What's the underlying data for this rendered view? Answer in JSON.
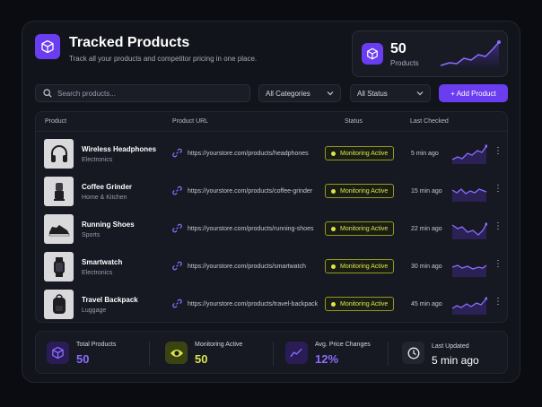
{
  "header": {
    "title": "Tracked Products",
    "subtitle": "Track all your products and competitor pricing in one place."
  },
  "stat_card": {
    "value": "50",
    "label": "Products"
  },
  "toolbar": {
    "search_placeholder": "Search products...",
    "category_filter": "All Categories",
    "status_filter": "All Status",
    "add_button": "+ Add Product"
  },
  "table": {
    "columns": [
      "Product",
      "Product URL",
      "Status",
      "Last Checked"
    ],
    "rows": [
      {
        "name": "Wireless Headphones",
        "category": "Electronics",
        "url": "https://yourstore.com/products/headphones",
        "status": "Monitoring Active",
        "last_checked": "5 min ago",
        "icon": "headphones-icon"
      },
      {
        "name": "Coffee Grinder",
        "category": "Home & Kitchen",
        "url": "https://yourstore.com/products/coffee-grinder",
        "status": "Monitoring Active",
        "last_checked": "15 min ago",
        "icon": "coffee-grinder-icon"
      },
      {
        "name": "Running Shoes",
        "category": "Sports",
        "url": "https://yourstore.com/products/running-shoes",
        "status": "Monitoring Active",
        "last_checked": "22 min ago",
        "icon": "shoe-icon"
      },
      {
        "name": "Smartwatch",
        "category": "Electronics",
        "url": "https://yourstore.com/products/smartwatch",
        "status": "Monitoring Active",
        "last_checked": "30 min ago",
        "icon": "smartwatch-icon"
      },
      {
        "name": "Travel Backpack",
        "category": "Luggage",
        "url": "https://yourstore.com/products/travel-backpack",
        "status": "Monitoring Active",
        "last_checked": "45 min ago",
        "icon": "backpack-icon"
      }
    ]
  },
  "summary": {
    "total_products": {
      "label": "Total Products",
      "value": "50"
    },
    "monitoring_active": {
      "label": "Monitoring Active",
      "value": "50"
    },
    "avg_price_changes": {
      "label": "Avg. Price Changes",
      "value": "12%"
    },
    "last_updated": {
      "label": "Last Updated",
      "value": "5 min ago"
    }
  },
  "colors": {
    "accent": "#6b3df0",
    "status_active": "#d8e64a",
    "avg_change": "#8b6cff"
  }
}
